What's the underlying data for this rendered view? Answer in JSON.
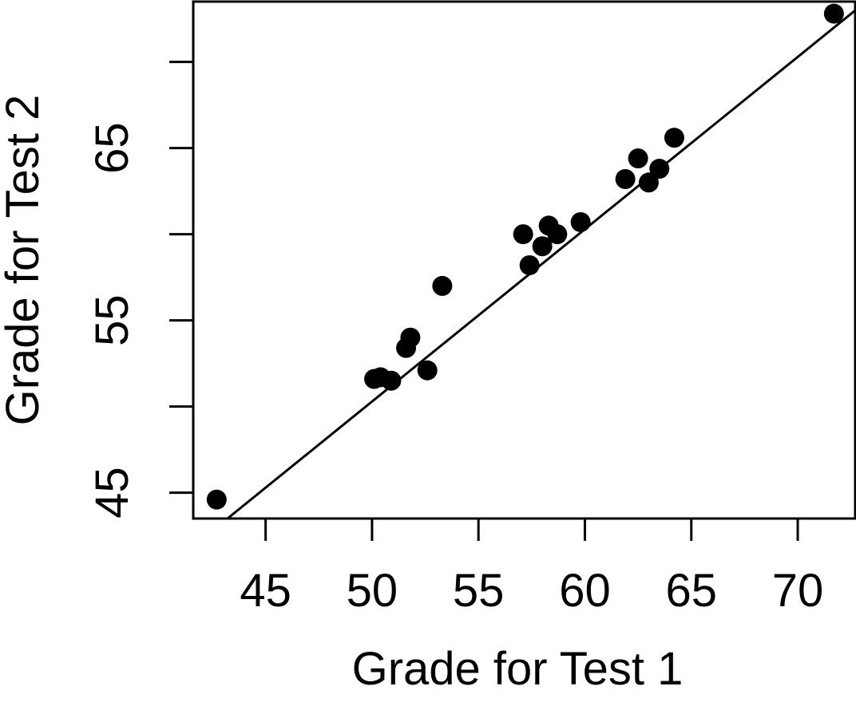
{
  "chart_data": {
    "type": "scatter",
    "title": "",
    "xlabel": "Grade for Test 1",
    "ylabel": "Grade for Test 2",
    "xlim": [
      41.6,
      72.7
    ],
    "ylim": [
      43.5,
      73.5
    ],
    "xticks": [
      45,
      50,
      55,
      60,
      65,
      70
    ],
    "xtick_labels": [
      "45",
      "50",
      "55",
      "60",
      "65",
      "70"
    ],
    "yticks": [
      45,
      50,
      55,
      60,
      65,
      70
    ],
    "ytick_labels": [
      "45",
      "",
      "55",
      "",
      "65",
      ""
    ],
    "grid": false,
    "legend": "none",
    "points": [
      {
        "x": 42.7,
        "y": 44.6
      },
      {
        "x": 50.1,
        "y": 51.6
      },
      {
        "x": 50.4,
        "y": 51.7
      },
      {
        "x": 50.9,
        "y": 51.5
      },
      {
        "x": 51.6,
        "y": 53.4
      },
      {
        "x": 51.8,
        "y": 54.0
      },
      {
        "x": 52.6,
        "y": 52.1
      },
      {
        "x": 53.3,
        "y": 57.0
      },
      {
        "x": 57.1,
        "y": 60.0
      },
      {
        "x": 57.4,
        "y": 58.2
      },
      {
        "x": 58.0,
        "y": 59.3
      },
      {
        "x": 58.3,
        "y": 60.5
      },
      {
        "x": 58.7,
        "y": 60.0
      },
      {
        "x": 59.8,
        "y": 60.7
      },
      {
        "x": 61.9,
        "y": 63.2
      },
      {
        "x": 62.5,
        "y": 64.4
      },
      {
        "x": 63.0,
        "y": 63.0
      },
      {
        "x": 63.5,
        "y": 63.8
      },
      {
        "x": 64.2,
        "y": 65.6
      },
      {
        "x": 71.7,
        "y": 72.8
      }
    ],
    "fit_line": {
      "intercept": 0.29,
      "slope": 1.0
    },
    "colors": {
      "points": "#000000",
      "line": "#000000",
      "frame": "#000000"
    }
  }
}
